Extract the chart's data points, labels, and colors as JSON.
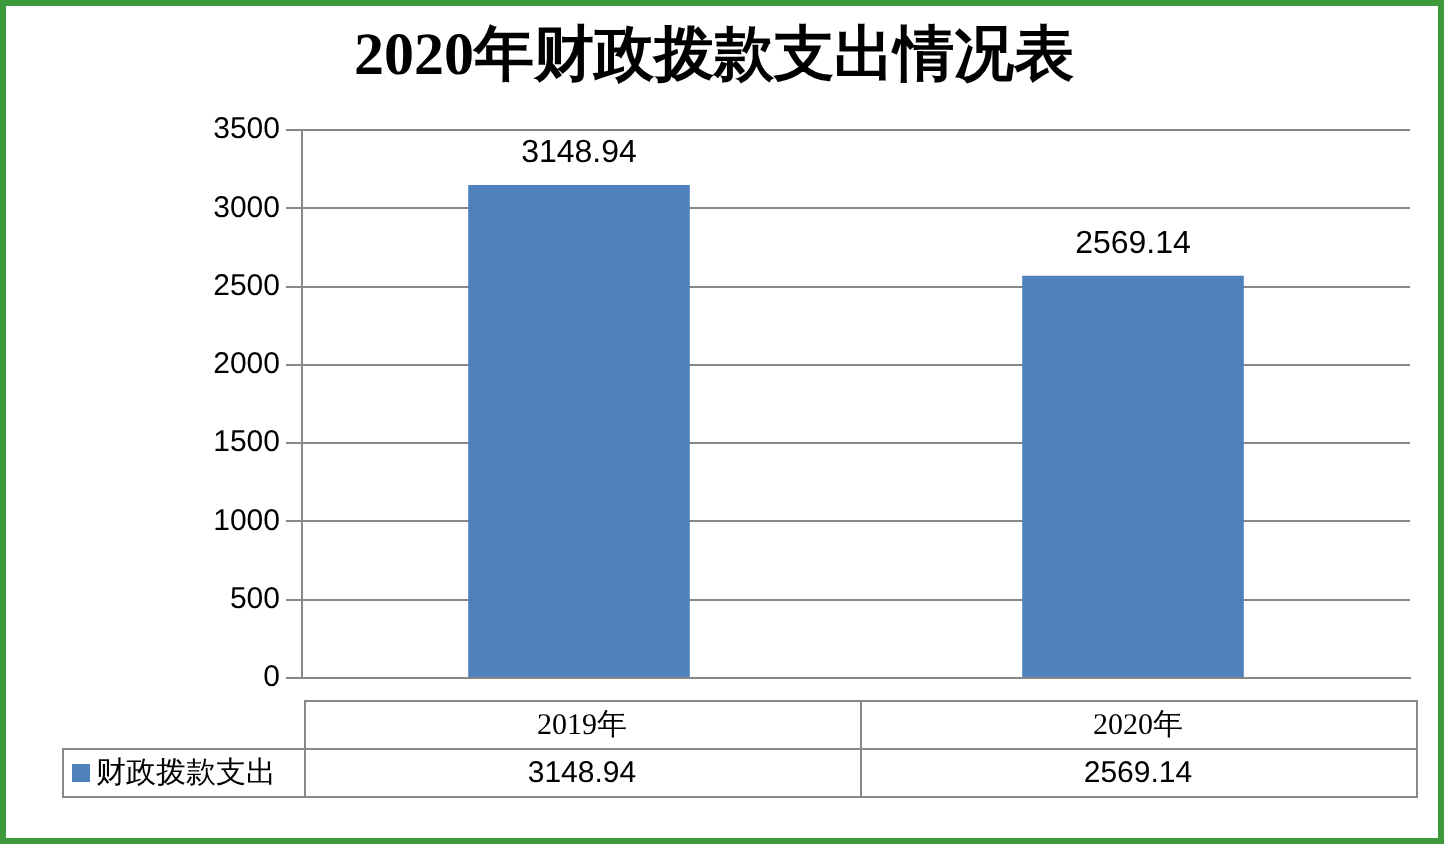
{
  "chart_data": {
    "type": "bar",
    "title": "2020年财政拨款支出情况表",
    "categories": [
      "2019年",
      "2020年"
    ],
    "series": [
      {
        "name": "财政拨款支出",
        "color": "#4f81bd",
        "values": [
          3148.94,
          2569.14
        ],
        "value_labels": [
          "3148.94",
          "2569.14"
        ]
      }
    ],
    "ylim": [
      0,
      3500
    ],
    "yticks": [
      0,
      500,
      1000,
      1500,
      2000,
      2500,
      3000,
      3500
    ],
    "grid": "y",
    "annotations": [
      {
        "text": "3148.94",
        "x": "2019年",
        "y": 3148.94
      },
      {
        "text": "2569.14",
        "x": "2020年",
        "y": 2569.14
      }
    ]
  }
}
